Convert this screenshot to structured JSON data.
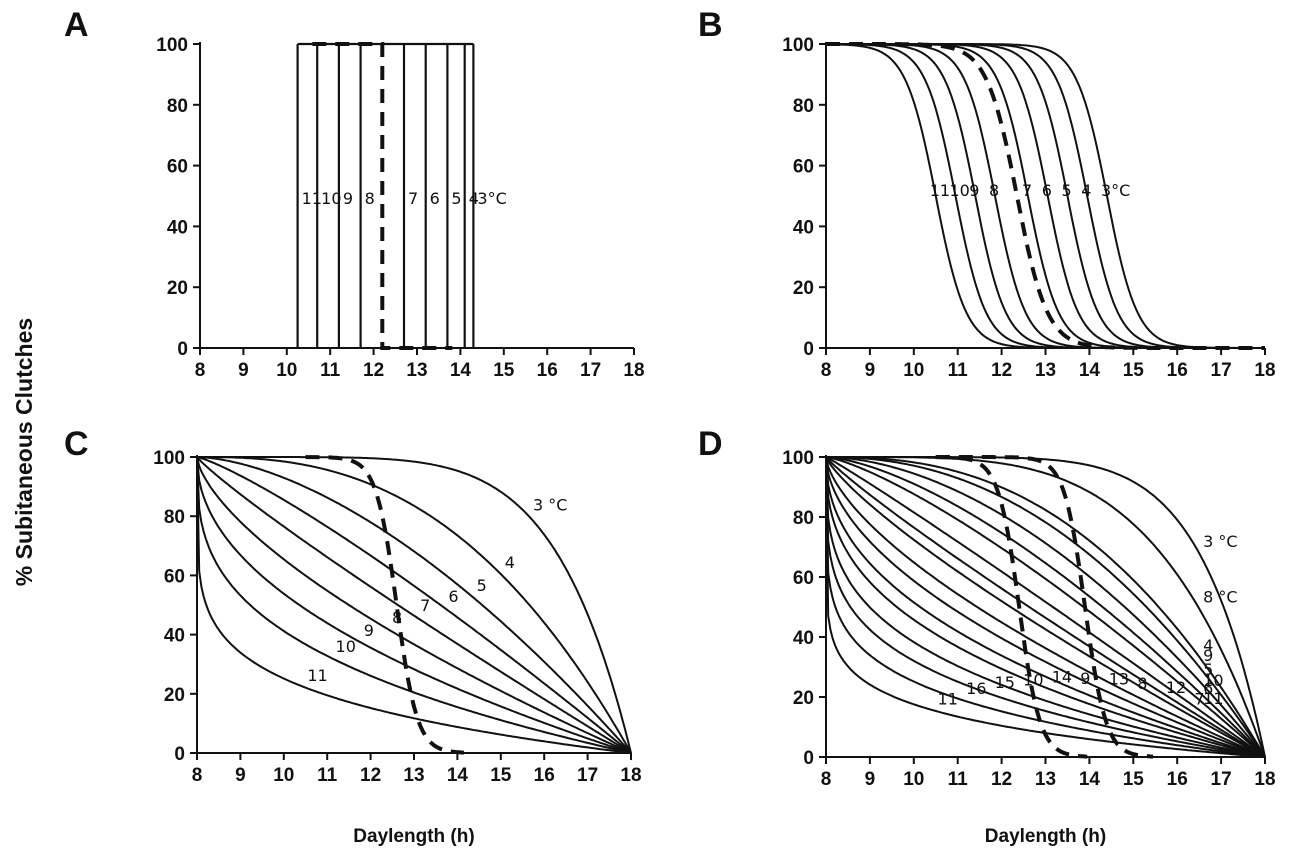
{
  "figure": {
    "ylabel": "% Subitaneous Clutches",
    "xlabel": "Daylength (h)"
  },
  "chart_data": [
    {
      "panel": "A",
      "type": "line",
      "xlim": [
        8,
        18
      ],
      "ylim": [
        0,
        100
      ],
      "xticks": [
        8,
        9,
        10,
        11,
        12,
        13,
        14,
        15,
        16,
        17,
        18
      ],
      "yticks": [
        0,
        20,
        40,
        60,
        80,
        100
      ],
      "xlabel": "",
      "form": "step",
      "series": [
        {
          "name": "11",
          "threshold": 10.25,
          "label": "11"
        },
        {
          "name": "10",
          "threshold": 10.7,
          "label": "10"
        },
        {
          "name": "9",
          "threshold": 11.2,
          "label": "9"
        },
        {
          "name": "8",
          "threshold": 11.7,
          "label": "8"
        },
        {
          "name": "dashed",
          "threshold": 12.2,
          "dashed": true,
          "label": ""
        },
        {
          "name": "7",
          "threshold": 12.7,
          "label": "7"
        },
        {
          "name": "6",
          "threshold": 13.2,
          "label": "6"
        },
        {
          "name": "5",
          "threshold": 13.7,
          "label": "5"
        },
        {
          "name": "4",
          "threshold": 14.1,
          "label": "4"
        },
        {
          "name": "3",
          "threshold": 14.3,
          "label": "3°C"
        }
      ]
    },
    {
      "panel": "B",
      "type": "line",
      "xlim": [
        8,
        18
      ],
      "ylim": [
        0,
        100
      ],
      "xticks": [
        8,
        9,
        10,
        11,
        12,
        13,
        14,
        15,
        16,
        17,
        18
      ],
      "yticks": [
        0,
        20,
        40,
        60,
        80,
        100
      ],
      "xlabel": "",
      "form": "sigmoid",
      "series": [
        {
          "name": "11",
          "midpoint": 10.5,
          "label": "11"
        },
        {
          "name": "10",
          "midpoint": 10.95,
          "label": "10"
        },
        {
          "name": "9",
          "midpoint": 11.4,
          "label": "9"
        },
        {
          "name": "8",
          "midpoint": 11.85,
          "label": "8"
        },
        {
          "name": "dashed",
          "midpoint": 12.35,
          "dashed": true,
          "label": ""
        },
        {
          "name": "7",
          "midpoint": 12.6,
          "label": "7"
        },
        {
          "name": "6",
          "midpoint": 13.05,
          "label": "6"
        },
        {
          "name": "5",
          "midpoint": 13.5,
          "label": "5"
        },
        {
          "name": "4",
          "midpoint": 13.95,
          "label": "4"
        },
        {
          "name": "3",
          "midpoint": 14.4,
          "label": "3°C"
        }
      ]
    },
    {
      "panel": "C",
      "type": "line",
      "xlim": [
        8,
        18
      ],
      "ylim": [
        0,
        100
      ],
      "xticks": [
        8,
        9,
        10,
        11,
        12,
        13,
        14,
        15,
        16,
        17,
        18
      ],
      "yticks": [
        0,
        20,
        40,
        60,
        80,
        100
      ],
      "xlabel": "Daylength (h)",
      "form": "spread",
      "series": [
        {
          "name": "3",
          "exponent": 6.0,
          "label": "3 °C"
        },
        {
          "name": "4",
          "exponent": 2.6,
          "label": "4"
        },
        {
          "name": "5",
          "exponent": 1.65,
          "label": "5"
        },
        {
          "name": "6",
          "exponent": 1.2,
          "label": "6"
        },
        {
          "name": "7",
          "exponent": 0.9,
          "label": "7"
        },
        {
          "name": "8",
          "exponent": 0.66,
          "label": "8"
        },
        {
          "name": "9",
          "exponent": 0.48,
          "label": "9"
        },
        {
          "name": "10",
          "exponent": 0.33,
          "label": "10"
        },
        {
          "name": "11",
          "exponent": 0.18,
          "label": "11"
        }
      ],
      "dashed_series": [
        {
          "midpoint": 12.6,
          "label": ""
        }
      ]
    },
    {
      "panel": "D",
      "type": "line",
      "xlim": [
        8,
        18
      ],
      "ylim": [
        0,
        100
      ],
      "xticks": [
        8,
        9,
        10,
        11,
        12,
        13,
        14,
        15,
        16,
        17,
        18
      ],
      "yticks": [
        0,
        20,
        40,
        60,
        80,
        100
      ],
      "xlabel": "Daylength (h)",
      "form": "spread",
      "series": [
        {
          "name": "3",
          "exponent": 7.0,
          "label": "3 °C"
        },
        {
          "name": "8",
          "exponent": 4.2,
          "label": "8 °C"
        },
        {
          "name": "4",
          "exponent": 2.5,
          "label": "4"
        },
        {
          "name": "9",
          "exponent": 2.2,
          "label": "9"
        },
        {
          "name": "5",
          "exponent": 1.8,
          "label": "5"
        },
        {
          "name": "10",
          "exponent": 1.5,
          "label": "10"
        },
        {
          "name": "6",
          "exponent": 1.3,
          "label": "6"
        },
        {
          "name": "11",
          "exponent": 1.05,
          "label": "11"
        },
        {
          "name": "7",
          "exponent": 0.9,
          "label": "7"
        },
        {
          "name": "12",
          "exponent": 0.8,
          "label": "12"
        },
        {
          "name": "8b",
          "exponent": 0.65,
          "label": "8"
        },
        {
          "name": "13",
          "exponent": 0.55,
          "label": "13"
        },
        {
          "name": "9b",
          "exponent": 0.45,
          "label": "9"
        },
        {
          "name": "14",
          "exponent": 0.38,
          "label": "14"
        },
        {
          "name": "10b",
          "exponent": 0.3,
          "label": "10"
        },
        {
          "name": "15",
          "exponent": 0.24,
          "label": "15"
        },
        {
          "name": "16",
          "exponent": 0.18,
          "label": "16"
        },
        {
          "name": "11b",
          "exponent": 0.12,
          "label": "11"
        }
      ],
      "dashed_series": [
        {
          "midpoint": 12.4,
          "label": ""
        },
        {
          "midpoint": 13.9,
          "label": ""
        }
      ]
    }
  ]
}
